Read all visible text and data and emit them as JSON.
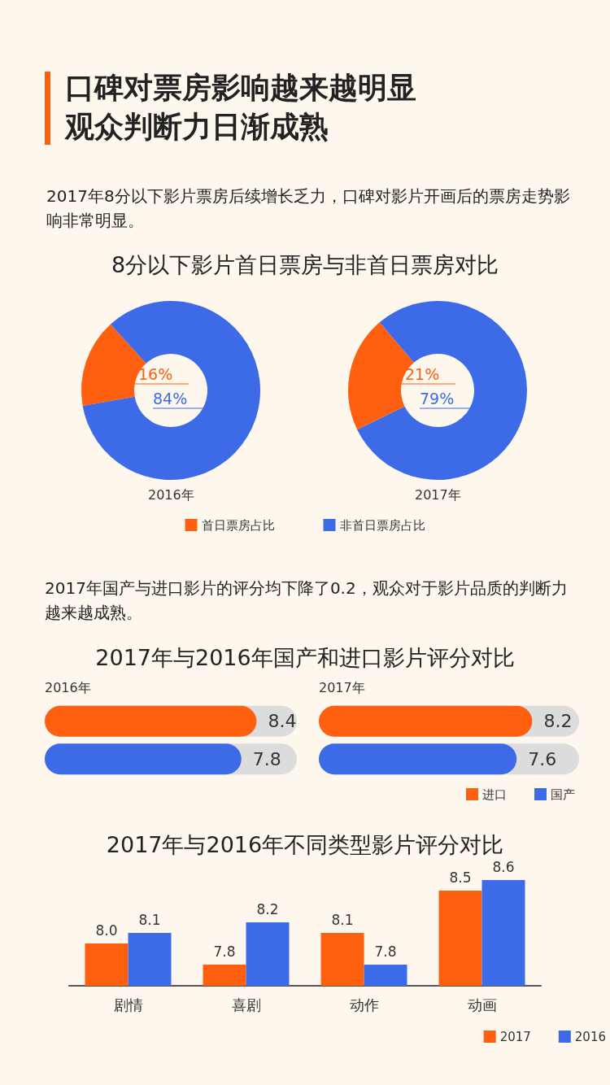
{
  "chart_data": [
    {
      "type": "other",
      "title": "口碑对票房影响越来越明显观众判断力日渐成熟",
      "subtitle": "2017年8分以下影片票房后续增长乏力，口碑对影片开画后的票房走势影响非常明显。"
    },
    {
      "type": "donut",
      "title": "8分以下影片首日票房与非首日票房对比",
      "xlabel": "2016年",
      "categories": [
        "首日票房占比",
        "非首日票房占比"
      ],
      "values": [
        16,
        84
      ],
      "colors": [
        "#ff6010",
        "#3d6be8"
      ],
      "value_labels": [
        "16%",
        "84%"
      ],
      "legend": "bottom"
    },
    {
      "type": "donut",
      "xlabel": "2017年",
      "categories": [
        null,
        null
      ],
      "values": [
        21,
        79
      ],
      "colors": [
        "#ff6010",
        "#3d6be8"
      ],
      "value_labels": [
        "21%",
        "79%"
      ],
      "legend": false
    },
    {
      "type": "bar",
      "orientation": "horizontal",
      "annotations": [
        "2017年国产与进口影片的评分均下降了0.2，观众对于影片品质的判断力越来越成熟。"
      ],
      "title": "2017年与2016年国产和进口影片评分对比",
      "subtitle": "2016年",
      "categories": [
        null
      ],
      "series": [
        {
          "color": "#ff6010",
          "values": [
            8.4
          ]
        },
        {
          "color": "#3d6be8",
          "values": [
            7.8
          ]
        }
      ],
      "xlim": [
        0,
        10
      ],
      "data_labels": true,
      "tick_labels": false,
      "legend": false
    },
    {
      "type": "bar",
      "orientation": "horizontal",
      "subtitle": "2017年",
      "categories": [
        null
      ],
      "series": [
        {
          "name": "进口",
          "color": "#ff6010",
          "values": [
            8.2
          ]
        },
        {
          "name": "国产",
          "color": "#3d6be8",
          "values": [
            7.6
          ]
        }
      ],
      "xlim": [
        0,
        10
      ],
      "data_labels": true,
      "tick_labels": false,
      "legend": "bottom right"
    },
    {
      "type": "bar",
      "title": "2017年与2016年不同类型影片评分对比",
      "categories": [
        "剧情",
        "喜剧",
        "动作",
        "动画"
      ],
      "series": [
        {
          "name": "2017",
          "color": "#ff6010",
          "values": [
            8.0,
            7.8,
            8.1,
            8.5
          ],
          "value_labels": [
            "8.0",
            "7.8",
            "8.1",
            "8.5"
          ]
        },
        {
          "name": "2016",
          "color": "#3d6be8",
          "values": [
            8.1,
            8.2,
            7.8,
            8.6
          ]
        }
      ],
      "ylim": [
        7.6,
        8.6
      ],
      "data_labels": true,
      "tick_labels": "x",
      "legend": "bottom right",
      "grid": false
    }
  ]
}
